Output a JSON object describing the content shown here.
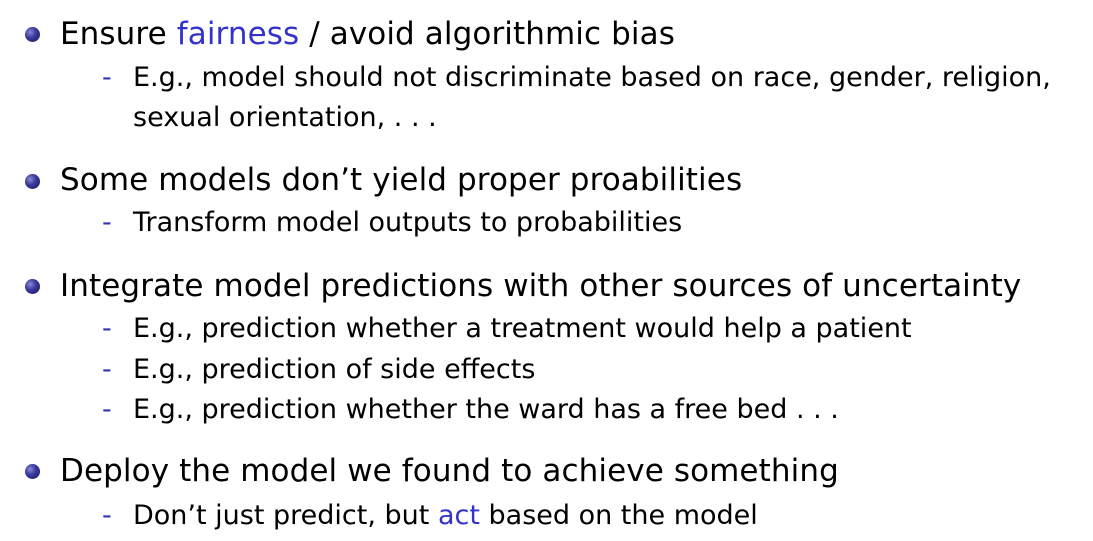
{
  "items": [
    {
      "pre": "Ensure ",
      "highlight": "fairness",
      "post": " / avoid algorithmic bias",
      "subs": [
        {
          "dash": "-",
          "text": "E.g., model should not discriminate based on race, gender, religion, sexual orientation, . . ."
        }
      ]
    },
    {
      "text": "Some models don’t yield proper proabilities",
      "subs": [
        {
          "dash": "-",
          "text": "Transform model outputs to probabilities"
        }
      ]
    },
    {
      "text": "Integrate model predictions with other sources of uncertainty",
      "subs": [
        {
          "dash": "-",
          "text": "E.g., prediction whether a treatment would help a patient"
        },
        {
          "dash": "-",
          "text": "E.g., prediction of side effects"
        },
        {
          "dash": "-",
          "text": "E.g., prediction whether the ward has a free bed . . ."
        }
      ]
    },
    {
      "text": "Deploy the model we found to achieve something",
      "subs": [
        {
          "dash": "-",
          "pre": "Don’t just predict, but ",
          "highlight": "act",
          "post": " based on the model"
        }
      ]
    }
  ],
  "colors": {
    "highlight": "#3333cc",
    "bullet": "#2b2b8a",
    "dash": "#3333b3"
  },
  "icons": {
    "bullet": "ball-bullet-icon"
  }
}
